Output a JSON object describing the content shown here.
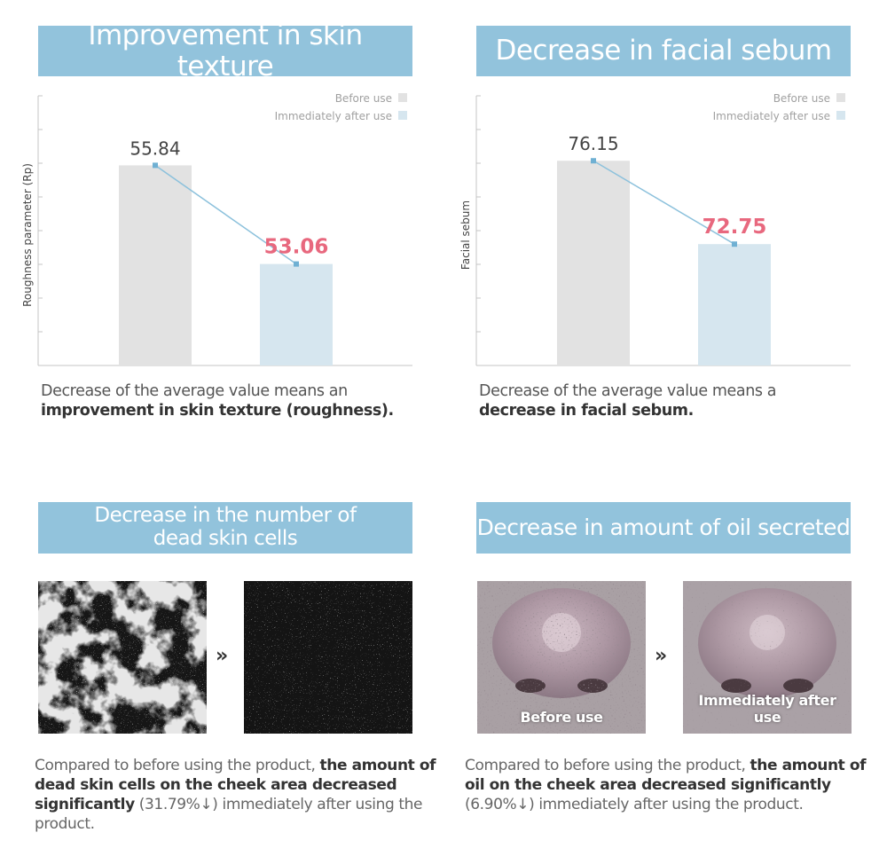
{
  "panels": [
    {
      "title": "Improvement in skin texture",
      "caption": {
        "text": "Decrease of the average value means an ",
        "bold": "improvement in skin texture (roughness)."
      }
    },
    {
      "title": "Decrease in facial sebum",
      "caption": {
        "text": "Decrease of the average value means a ",
        "bold": "decrease in facial sebum."
      }
    },
    {
      "title_line1": "Decrease in the number of",
      "title_line2": "dead skin cells",
      "caption": {
        "text1": "Compared to before using the product, ",
        "bold": "the amount of dead skin cells on the cheek area decreased significantly",
        "text2": " (31.79%↓) immediately after using the product."
      }
    },
    {
      "title": "Decrease in amount of oil secreted",
      "caption": {
        "text1": "Compared to before using the product, ",
        "bold": "the amount of oil on the cheek area decreased significantly",
        "text2": " (6.90%↓) immediately after using the product."
      },
      "before_label": "Before use",
      "after_label": "Immediately after use"
    }
  ],
  "arrow_symbol": "»",
  "colors": {
    "banner": "#92c3dc",
    "before_bar": "#e2e2e2",
    "after_bar": "#d6e6ef",
    "line": "#8cc1dc",
    "highlight": "#e8687e"
  },
  "chart_data": [
    {
      "type": "bar",
      "ylabel": "Roughness parameter (Rp)",
      "categories": [
        "Before use",
        "Immediately after use"
      ],
      "values": [
        55.84,
        53.06
      ],
      "value_labels": [
        "55.84",
        "53.06"
      ],
      "ylim": [
        50.2,
        57.8
      ],
      "tick_count": 8,
      "legend": [
        "Before use",
        "Immediately after use"
      ],
      "legend_position": "top-right",
      "overlay": "line connecting bar tops"
    },
    {
      "type": "bar",
      "ylabel": "Facial sebum",
      "categories": [
        "Before use",
        "Immediately after use"
      ],
      "values": [
        76.15,
        72.75
      ],
      "value_labels": [
        "76.15",
        "72.75"
      ],
      "ylim": [
        67.8,
        78.8
      ],
      "tick_count": 8,
      "legend": [
        "Before use",
        "Immediately after use"
      ],
      "legend_position": "top-right",
      "overlay": "line connecting bar tops"
    }
  ]
}
